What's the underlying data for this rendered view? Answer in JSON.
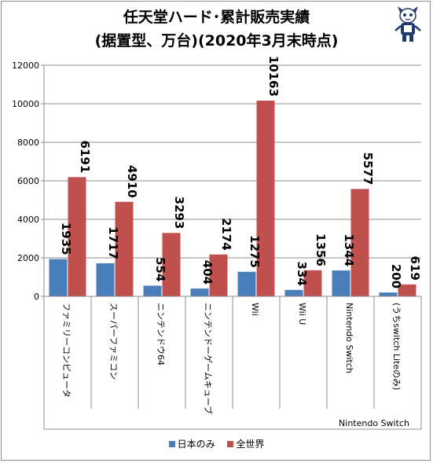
{
  "title_line1": "任天堂ハード･累計販売実績",
  "title_line2": "(据置型、万台)(2020年3月末時点)",
  "chart_data": {
    "type": "bar",
    "categories": [
      "ファミリーコンピュータ",
      "スーパーファミコン",
      "ニンテンドウ64",
      "ニンテンドーゲームキューブ",
      "Wii",
      "Wii U",
      "Nintendo Switch",
      "(うちswitch Liteのみ)"
    ],
    "category_group_note": "Nintendo Switch",
    "series": [
      {
        "name": "日本のみ",
        "color": "#4a7ebb",
        "values": [
          1935,
          1717,
          554,
          404,
          1275,
          334,
          1344,
          200
        ]
      },
      {
        "name": "全世界",
        "color": "#c0504d",
        "values": [
          6191,
          4910,
          3293,
          2174,
          10163,
          1356,
          5577,
          619
        ]
      }
    ],
    "ylim": [
      0,
      12000
    ],
    "yticks": [
      "0",
      "2000",
      "4000",
      "6000",
      "8000",
      "10000",
      "12000"
    ],
    "grid": true,
    "legend_position": "bottom"
  }
}
